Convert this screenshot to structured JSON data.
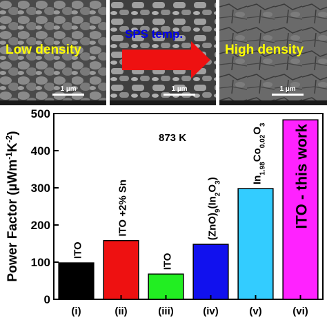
{
  "micrographs": {
    "left_label": "Low density",
    "middle_arrow_label": "SPS temp.",
    "right_label": "High density",
    "scale_bar": "1 µm",
    "colors": {
      "label": "#ffff00",
      "arrow": "#ee1111",
      "arrow_text": "#0000ee"
    }
  },
  "chart_data": {
    "type": "bar",
    "categories": [
      "(i)",
      "(ii)",
      "(iii)",
      "(iv)",
      "(v)",
      "(vi)"
    ],
    "values": [
      98,
      158,
      68,
      148,
      298,
      483
    ],
    "bar_labels": [
      "ITO",
      "ITO +2% Sn",
      "ITO",
      "(ZnO)9(In2O3)",
      "In1.98Co0.02O3",
      "ITO - this work"
    ],
    "colors": [
      "#000000",
      "#ee1111",
      "#22ee22",
      "#1111ee",
      "#33ccff",
      "#ff22ff"
    ],
    "annotation": "873 K",
    "ylabel": "Power Factor (µWm⁻¹K⁻²)",
    "ylim": [
      0,
      500
    ],
    "yticks": [
      0,
      100,
      200,
      300,
      400,
      500
    ],
    "grid": false
  }
}
